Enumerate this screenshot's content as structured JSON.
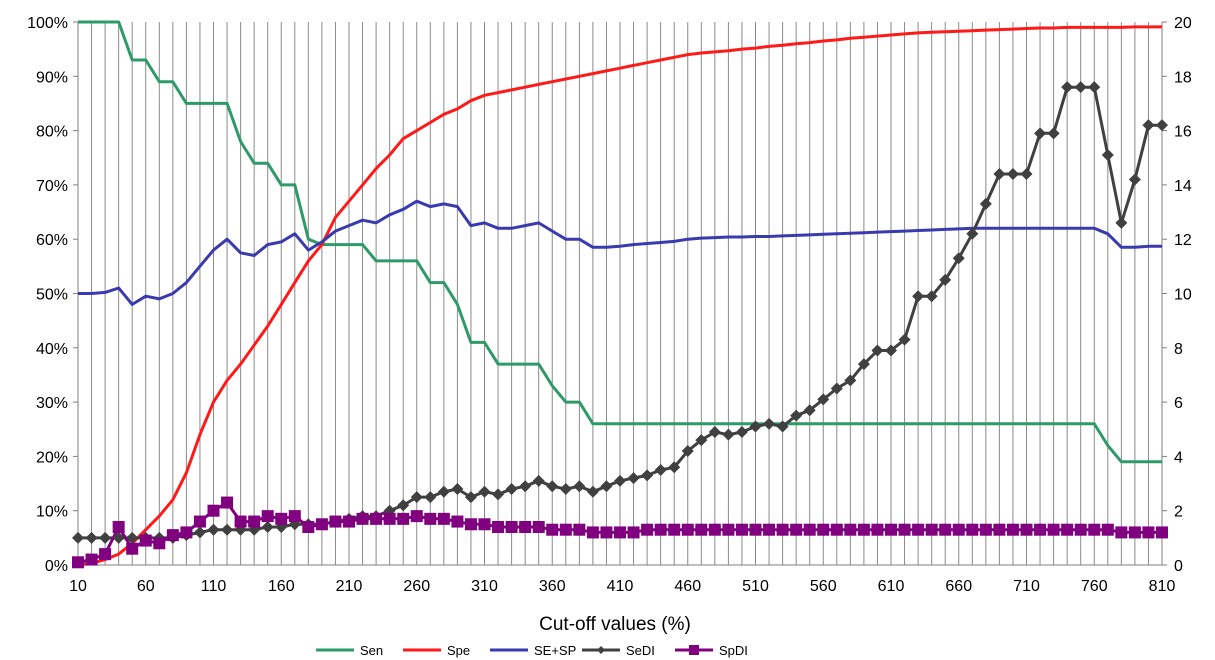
{
  "chart_data": {
    "type": "line",
    "xlabel": "Cut-off values (%)",
    "x": [
      10,
      20,
      30,
      40,
      50,
      60,
      70,
      80,
      90,
      100,
      110,
      120,
      130,
      140,
      150,
      160,
      170,
      180,
      190,
      200,
      210,
      220,
      230,
      240,
      250,
      260,
      270,
      280,
      290,
      300,
      310,
      320,
      330,
      340,
      350,
      360,
      370,
      380,
      390,
      400,
      410,
      420,
      430,
      440,
      450,
      460,
      470,
      480,
      490,
      500,
      510,
      520,
      530,
      540,
      550,
      560,
      570,
      580,
      590,
      600,
      610,
      620,
      630,
      640,
      650,
      660,
      670,
      680,
      690,
      700,
      710,
      720,
      730,
      740,
      750,
      760,
      770,
      780,
      790,
      800,
      810
    ],
    "x_tick_labels": [
      "10",
      "60",
      "110",
      "160",
      "210",
      "260",
      "310",
      "360",
      "410",
      "460",
      "510",
      "560",
      "610",
      "660",
      "710",
      "760",
      "810"
    ],
    "x_tick_values": [
      10,
      60,
      110,
      160,
      210,
      260,
      310,
      360,
      410,
      460,
      510,
      560,
      610,
      660,
      710,
      760,
      810
    ],
    "y_left": {
      "min": 0,
      "max": 100,
      "ticks": [
        "0%",
        "10%",
        "20%",
        "30%",
        "40%",
        "50%",
        "60%",
        "70%",
        "80%",
        "90%",
        "100%"
      ]
    },
    "y_right": {
      "min": 0,
      "max": 20,
      "ticks": [
        "0",
        "2",
        "4",
        "6",
        "8",
        "10",
        "12",
        "14",
        "16",
        "18",
        "20"
      ]
    },
    "series": [
      {
        "name": "Sen",
        "axis": "left",
        "color": "#2e9a6a",
        "marker": "none",
        "values": [
          100,
          100,
          100,
          100,
          93,
          93,
          89,
          89,
          85,
          85,
          85,
          85,
          78,
          74,
          74,
          70,
          70,
          60,
          59,
          59,
          59,
          59,
          56,
          56,
          56,
          56,
          52,
          52,
          48,
          41,
          41,
          37,
          37,
          37,
          37,
          33,
          30,
          30,
          26,
          26,
          26,
          26,
          26,
          26,
          26,
          26,
          26,
          26,
          26,
          26,
          26,
          26,
          26,
          26,
          26,
          26,
          26,
          26,
          26,
          26,
          26,
          26,
          26,
          26,
          26,
          26,
          26,
          26,
          26,
          26,
          26,
          26,
          26,
          26,
          26,
          26,
          22,
          19,
          19,
          19,
          19
        ]
      },
      {
        "name": "Spe",
        "axis": "left",
        "color": "#ff1a1a",
        "marker": "none",
        "values": [
          0,
          0.3,
          1,
          2,
          4,
          6.5,
          9,
          12,
          17,
          24,
          30,
          34,
          37,
          40.5,
          44,
          48,
          52,
          56,
          59,
          64,
          67,
          70,
          73,
          75.5,
          78.5,
          80,
          81.5,
          83,
          84,
          85.5,
          86.5,
          87,
          87.5,
          88,
          88.5,
          89,
          89.5,
          90,
          90.5,
          91,
          91.5,
          92,
          92.5,
          93,
          93.5,
          94,
          94.3,
          94.5,
          94.7,
          95,
          95.2,
          95.5,
          95.7,
          96,
          96.2,
          96.5,
          96.7,
          97,
          97.2,
          97.4,
          97.6,
          97.8,
          98,
          98.1,
          98.2,
          98.3,
          98.4,
          98.5,
          98.6,
          98.7,
          98.8,
          98.9,
          98.9,
          99,
          99,
          99,
          99,
          99,
          99.1,
          99.1,
          99.1
        ]
      },
      {
        "name": "SE+SP",
        "axis": "left",
        "color": "#3a3ab0",
        "marker": "none",
        "values": [
          50,
          50,
          50.2,
          51,
          48,
          49.5,
          49,
          50,
          52,
          55,
          58,
          60,
          57.5,
          57,
          59,
          59.5,
          61,
          58,
          59.5,
          61.5,
          62.5,
          63.5,
          63,
          64.5,
          65.5,
          67,
          66,
          66.5,
          66,
          62.5,
          63,
          62,
          62,
          62.5,
          63,
          61.5,
          60,
          60,
          58.5,
          58.5,
          58.7,
          59,
          59.2,
          59.4,
          59.6,
          60,
          60.2,
          60.3,
          60.4,
          60.4,
          60.5,
          60.5,
          60.6,
          60.7,
          60.8,
          60.9,
          61,
          61.1,
          61.2,
          61.3,
          61.4,
          61.5,
          61.6,
          61.7,
          61.8,
          61.9,
          62,
          62,
          62,
          62,
          62,
          62,
          62,
          62,
          62,
          62,
          61,
          58.5,
          58.5,
          58.7,
          58.7
        ]
      },
      {
        "name": "SeDI",
        "axis": "right",
        "color": "#404040",
        "marker": "diamond",
        "values": [
          1,
          1,
          1,
          1,
          1,
          1,
          1,
          1,
          1.1,
          1.2,
          1.3,
          1.3,
          1.3,
          1.3,
          1.4,
          1.4,
          1.5,
          1.5,
          1.5,
          1.6,
          1.7,
          1.8,
          1.8,
          2.0,
          2.2,
          2.5,
          2.5,
          2.7,
          2.8,
          2.5,
          2.7,
          2.6,
          2.8,
          2.9,
          3.1,
          2.9,
          2.8,
          2.9,
          2.7,
          2.9,
          3.1,
          3.2,
          3.3,
          3.5,
          3.6,
          4.2,
          4.6,
          4.9,
          4.8,
          4.9,
          5.1,
          5.2,
          5.1,
          5.5,
          5.7,
          6.1,
          6.5,
          6.8,
          7.4,
          7.9,
          7.9,
          8.3,
          9.9,
          9.9,
          10.5,
          11.3,
          12.2,
          13.3,
          14.4,
          14.4,
          14.4,
          15.9,
          15.9,
          17.6,
          17.6,
          17.6,
          15.1,
          12.6,
          14.2,
          16.2,
          16.2
        ]
      },
      {
        "name": "SpDI",
        "axis": "right",
        "color": "#800080",
        "marker": "square",
        "values": [
          0.1,
          0.2,
          0.4,
          1.4,
          0.6,
          0.9,
          0.8,
          1.1,
          1.2,
          1.6,
          2.0,
          2.3,
          1.6,
          1.6,
          1.8,
          1.7,
          1.8,
          1.4,
          1.5,
          1.6,
          1.6,
          1.7,
          1.7,
          1.7,
          1.7,
          1.8,
          1.7,
          1.7,
          1.6,
          1.5,
          1.5,
          1.4,
          1.4,
          1.4,
          1.4,
          1.3,
          1.3,
          1.3,
          1.2,
          1.2,
          1.2,
          1.2,
          1.3,
          1.3,
          1.3,
          1.3,
          1.3,
          1.3,
          1.3,
          1.3,
          1.3,
          1.3,
          1.3,
          1.3,
          1.3,
          1.3,
          1.3,
          1.3,
          1.3,
          1.3,
          1.3,
          1.3,
          1.3,
          1.3,
          1.3,
          1.3,
          1.3,
          1.3,
          1.3,
          1.3,
          1.3,
          1.3,
          1.3,
          1.3,
          1.3,
          1.3,
          1.3,
          1.2,
          1.2,
          1.2,
          1.2
        ]
      }
    ],
    "grid": {
      "vertical": true,
      "horizontal": false
    },
    "legend_position": "bottom-center"
  }
}
